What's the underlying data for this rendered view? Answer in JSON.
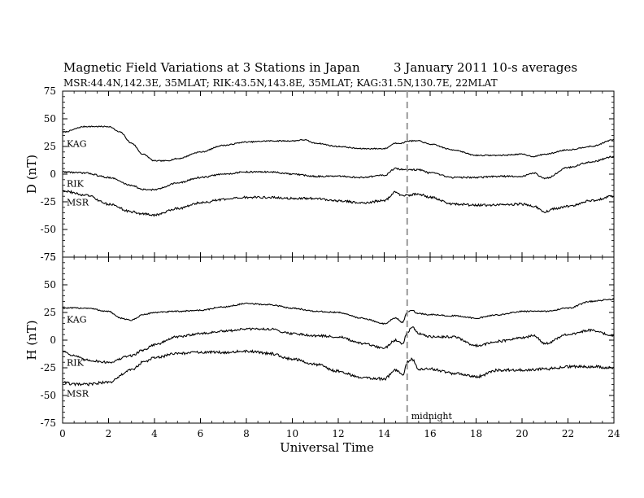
{
  "title_left": "Magnetic Field Variations at 3 Stations in Japan",
  "title_right": "3   January  2011      10-s averages",
  "subtitle": "MSR:44.4N,142.3E, 35MLAT;  RIK:43.5N,143.8E, 35MLAT;  KAG:31.5N,130.7E, 22MLAT",
  "chart_data": {
    "type": "line",
    "x_label": "Universal Time",
    "xlim": [
      0,
      24
    ],
    "x_ticks": [
      0,
      2,
      4,
      6,
      8,
      10,
      12,
      14,
      16,
      18,
      20,
      22,
      24
    ],
    "marker": {
      "x": 15,
      "label": "midnight",
      "style": "dashed",
      "color": "#999999"
    },
    "panels": [
      {
        "ylabel": "D (nT)",
        "ylim": [
          -75,
          75
        ],
        "y_ticks": [
          75,
          50,
          25,
          0,
          -25,
          -50,
          -75
        ],
        "series": [
          {
            "name": "KAG",
            "noise": 0.5,
            "x": [
              0,
              1,
              2,
              2.5,
              3,
              3.5,
              4,
              4.5,
              5,
              6,
              7,
              8,
              9,
              10,
              10.5,
              11,
              12,
              13,
              14,
              14.5,
              14.8,
              15,
              15.5,
              16,
              17,
              18,
              19,
              20,
              20.5,
              21,
              22,
              23,
              24
            ],
            "y": [
              38,
              43,
              43,
              38,
              28,
              18,
              12,
              12,
              14,
              20,
              26,
              29,
              30,
              30,
              31,
              28,
              25,
              23,
              23,
              28,
              28,
              30,
              30,
              27,
              22,
              17,
              17,
              18,
              16,
              18,
              22,
              25,
              31
            ]
          },
          {
            "name": "RIK",
            "noise": 0.7,
            "x": [
              0,
              1,
              2,
              3,
              3.5,
              4,
              5,
              6,
              7,
              8,
              9,
              10,
              11,
              12,
              13,
              14,
              14.5,
              14.8,
              15,
              15.5,
              16,
              17,
              18,
              19,
              20,
              20.5,
              21,
              22,
              23,
              24
            ],
            "y": [
              2,
              1,
              -3,
              -10,
              -14,
              -14,
              -8,
              -3,
              0,
              2,
              2,
              0,
              -2,
              -2,
              -3,
              -1,
              5,
              4,
              4,
              4,
              1,
              -3,
              -3,
              -2,
              -2,
              1,
              -4,
              6,
              11,
              16
            ]
          },
          {
            "name": "MSR",
            "noise": 1.0,
            "x": [
              0,
              1,
              2,
              3,
              3.5,
              4,
              5,
              6,
              7,
              8,
              9,
              10,
              11,
              12,
              13,
              14,
              14.5,
              14.8,
              15,
              15.5,
              16,
              17,
              18,
              19,
              20,
              20.5,
              21,
              21.5,
              22,
              23,
              24
            ],
            "y": [
              -15,
              -19,
              -27,
              -34,
              -36,
              -37,
              -31,
              -26,
              -23,
              -21,
              -21,
              -22,
              -22,
              -24,
              -26,
              -24,
              -16,
              -20,
              -19,
              -18,
              -21,
              -27,
              -28,
              -28,
              -27,
              -29,
              -34,
              -31,
              -29,
              -24,
              -20
            ]
          }
        ]
      },
      {
        "ylabel": "H (nT)",
        "ylim": [
          -75,
          75
        ],
        "y_ticks": [
          75,
          50,
          25,
          0,
          -25,
          -50,
          -75
        ],
        "series": [
          {
            "name": "KAG",
            "noise": 0.6,
            "x": [
              0,
              1,
              2,
              2.5,
              3,
              3.5,
              4,
              5,
              6,
              7,
              8,
              9,
              10,
              11,
              12,
              13,
              14,
              14.5,
              14.8,
              15,
              15.2,
              15.5,
              16,
              17,
              18,
              19,
              20,
              21,
              22,
              23,
              24
            ],
            "y": [
              29,
              29,
              26,
              20,
              18,
              23,
              25,
              26,
              27,
              30,
              33,
              32,
              29,
              26,
              25,
              20,
              15,
              20,
              16,
              25,
              27,
              24,
              23,
              22,
              20,
              23,
              26,
              26,
              29,
              35,
              37
            ]
          },
          {
            "name": "RIK",
            "noise": 1.0,
            "x": [
              0,
              0.5,
              1,
              2,
              3,
              3.5,
              4,
              5,
              6,
              7,
              8,
              9,
              10,
              11,
              12,
              13,
              14,
              14.5,
              14.8,
              15,
              15.2,
              15.5,
              16,
              17,
              18,
              19,
              20,
              20.5,
              21,
              22,
              23,
              24
            ],
            "y": [
              -10,
              -14,
              -18,
              -20,
              -14,
              -9,
              -4,
              3,
              6,
              8,
              10,
              10,
              6,
              4,
              3,
              -3,
              -7,
              0,
              -3,
              7,
              12,
              6,
              3,
              3,
              -5,
              -1,
              2,
              4,
              -3,
              5,
              9,
              4
            ]
          },
          {
            "name": "MSR",
            "noise": 1.2,
            "x": [
              0,
              0.5,
              1,
              2,
              3,
              3.5,
              4,
              5,
              6,
              7,
              8,
              9,
              10,
              11,
              12,
              13,
              14,
              14.5,
              14.8,
              15,
              15.2,
              15.5,
              16,
              17,
              18,
              19,
              20,
              21,
              22,
              23,
              24
            ],
            "y": [
              -38,
              -40,
              -40,
              -38,
              -27,
              -20,
              -16,
              -12,
              -11,
              -11,
              -10,
              -12,
              -17,
              -22,
              -28,
              -34,
              -35,
              -27,
              -32,
              -20,
              -17,
              -26,
              -26,
              -30,
              -33,
              -27,
              -27,
              -26,
              -24,
              -24,
              -25
            ]
          }
        ]
      }
    ]
  }
}
